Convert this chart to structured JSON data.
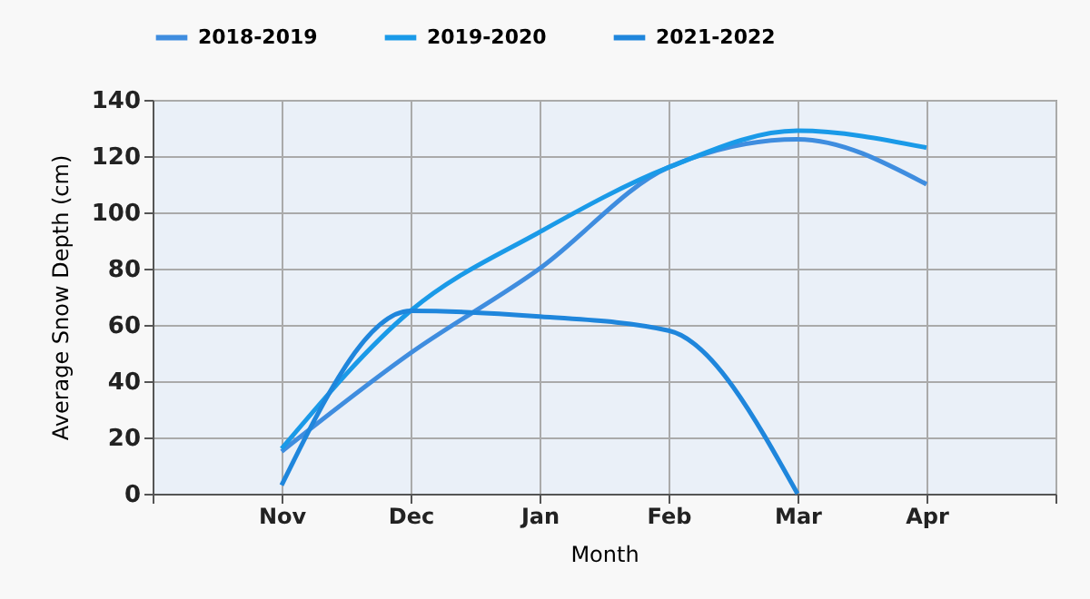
{
  "chart_data": {
    "type": "line",
    "xlabel": "Month",
    "ylabel": "Average Snow Depth (cm)",
    "categories": [
      null,
      "Nov",
      "Dec",
      "Jan",
      "Feb",
      "Mar",
      "Apr",
      null
    ],
    "series": [
      {
        "name": "2018-2019",
        "color": "#3f8ddf",
        "values": [
          null,
          15,
          50,
          80,
          116,
          126,
          110,
          null
        ]
      },
      {
        "name": "2019-2020",
        "color": "#1a9ae8",
        "values": [
          null,
          16,
          65,
          93,
          116,
          129,
          123,
          null
        ]
      },
      {
        "name": "2021-2022",
        "color": "#1f86dc",
        "values": [
          null,
          3,
          65,
          63,
          58,
          0,
          null,
          null
        ]
      }
    ],
    "ylim": [
      0,
      140
    ],
    "yticks": [
      0,
      20,
      40,
      60,
      80,
      100,
      120,
      140
    ],
    "grid": true,
    "legend": "top",
    "marker": "none",
    "line_style": "solid"
  }
}
